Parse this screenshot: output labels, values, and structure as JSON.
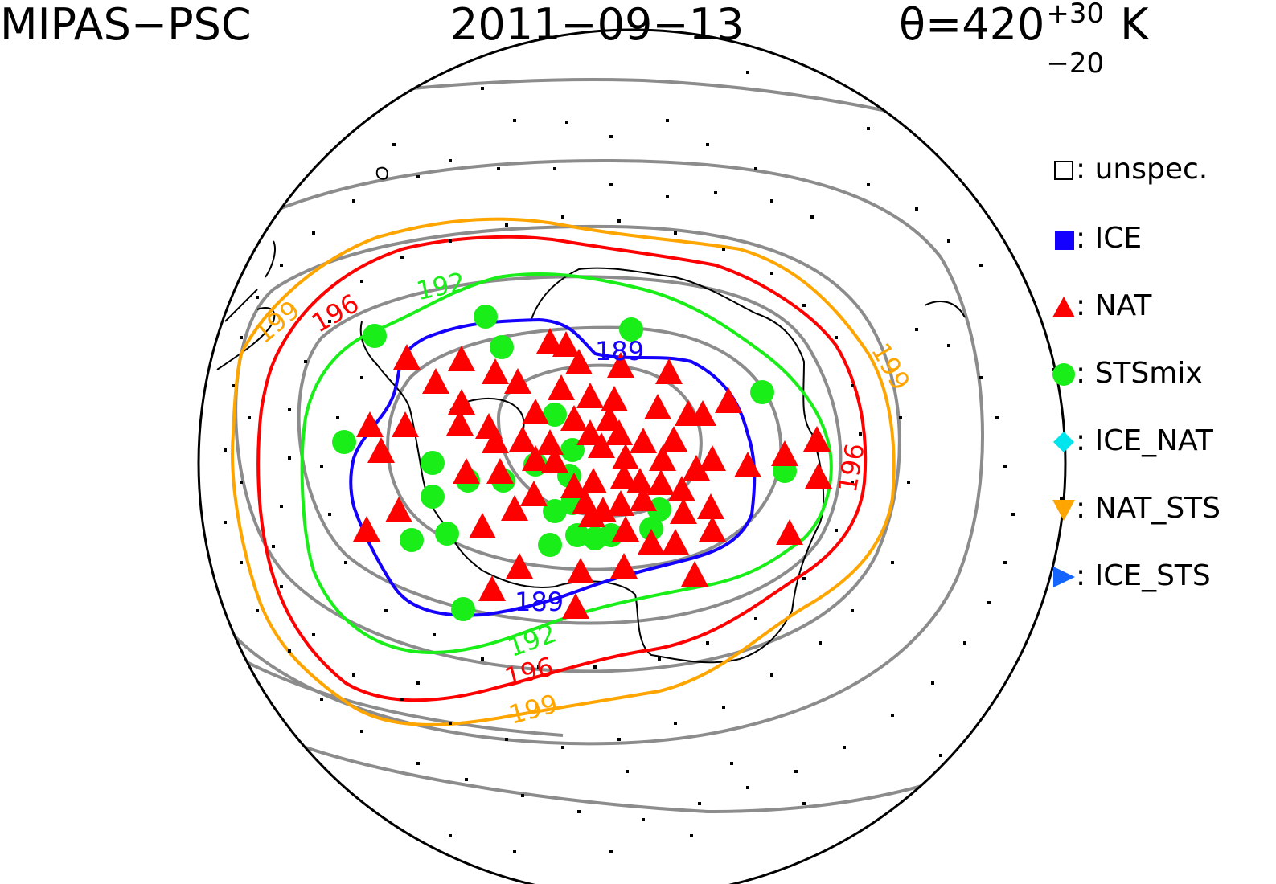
{
  "title": {
    "left": "MIPAS−PSC",
    "center": "2011−09−13",
    "theta_main": "θ=420",
    "theta_sup": "+30",
    "theta_sub": "−20",
    "theta_unit": "K"
  },
  "legend": [
    {
      "symbol": "square-open-icon",
      "label": ": unspec.",
      "color": "#000000"
    },
    {
      "symbol": "square-filled-icon",
      "label": ": ICE",
      "color": "#1400ff"
    },
    {
      "symbol": "triangle-up-icon",
      "label": ": NAT",
      "color": "#ff0000"
    },
    {
      "symbol": "circle-icon",
      "label": ": STSmix",
      "color": "#19ee19"
    },
    {
      "symbol": "diamond-icon",
      "label": ": ICE_NAT",
      "color": "#00e5ee"
    },
    {
      "symbol": "triangle-down-icon",
      "label": ": NAT_STS",
      "color": "#ffa500"
    },
    {
      "symbol": "triangle-right-icon",
      "label": ": ICE_STS",
      "color": "#1464ff"
    }
  ],
  "contour_labels": [
    {
      "text": "199",
      "color": "#ffa500"
    },
    {
      "text": "196",
      "color": "#ff0000"
    },
    {
      "text": "192",
      "color": "#19ee19"
    },
    {
      "text": "189",
      "color": "#1400ff"
    },
    {
      "text": "199",
      "color": "#ffa500"
    },
    {
      "text": "196",
      "color": "#ff0000"
    },
    {
      "text": "192",
      "color": "#19ee19"
    },
    {
      "text": "189",
      "color": "#1400ff"
    },
    {
      "text": "196",
      "color": "#ff0000"
    },
    {
      "text": "199",
      "color": "#ffa500"
    }
  ],
  "colors": {
    "contour_other": "#8c8c8c",
    "coast": "#000000"
  }
}
